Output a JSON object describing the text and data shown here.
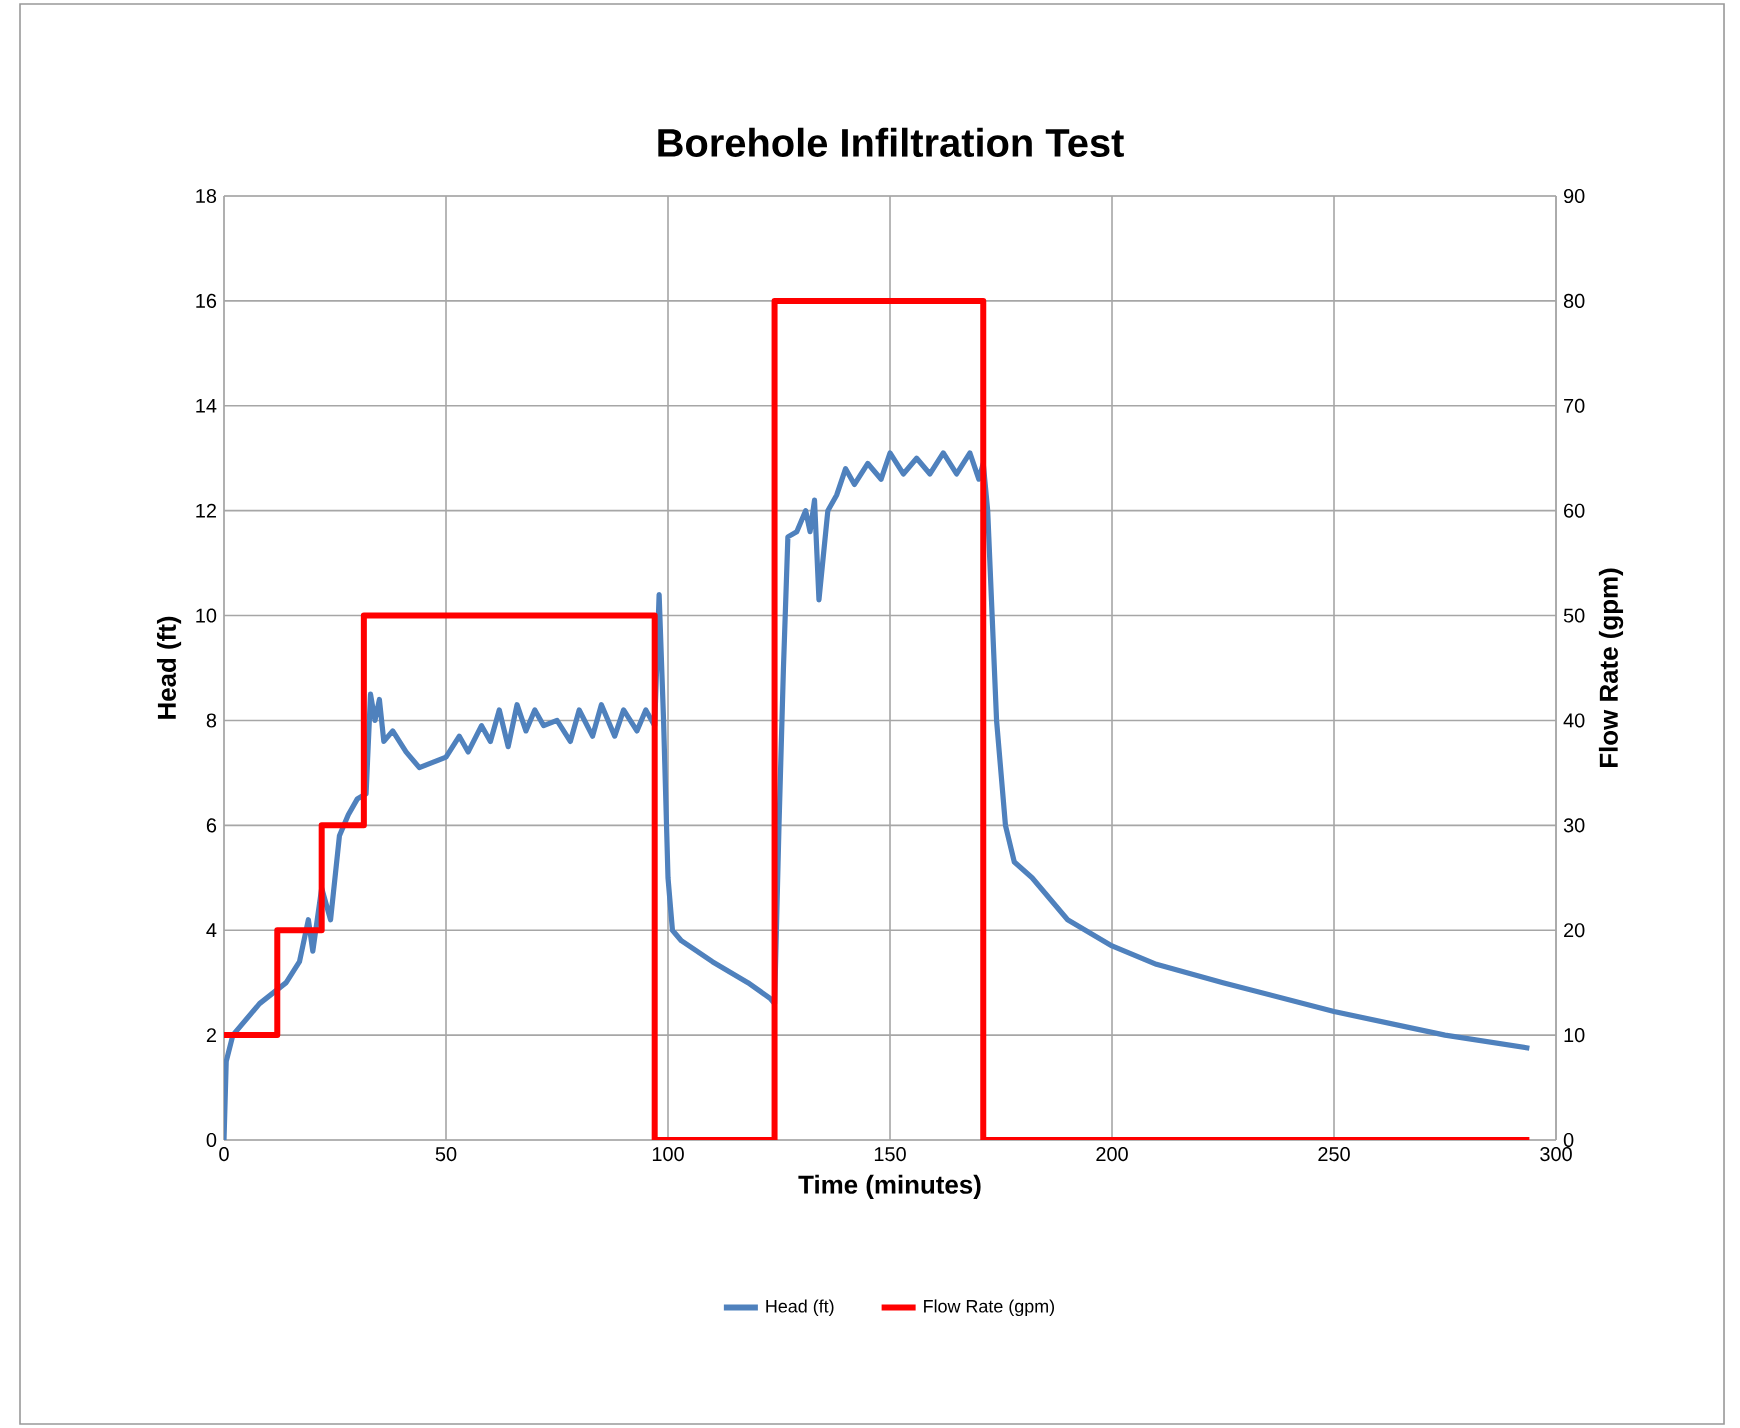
{
  "chart_data": {
    "type": "line",
    "title": "Borehole Infiltration Test",
    "xlabel": "Time (minutes)",
    "ylabel": "Head (ft)",
    "y2label": "Flow Rate (gpm)",
    "xlim": [
      0,
      300
    ],
    "xticks": [
      0,
      50,
      100,
      150,
      200,
      250,
      300
    ],
    "ylim": [
      0,
      18
    ],
    "yticks": [
      0,
      2,
      4,
      6,
      8,
      10,
      12,
      14,
      16,
      18
    ],
    "y2lim": [
      0,
      90
    ],
    "y2ticks": [
      0,
      10,
      20,
      30,
      40,
      50,
      60,
      70,
      80,
      90
    ],
    "grid": true,
    "legend": "bottom",
    "marker": "none",
    "series": [
      {
        "name": "Head (ft)",
        "color": "#4f81bd",
        "x": [
          0,
          0.5,
          2,
          5,
          8,
          11,
          14,
          17,
          19,
          20,
          22,
          24,
          26,
          28,
          30,
          32,
          33,
          34,
          35,
          36,
          38,
          41,
          44,
          47,
          50,
          53,
          55,
          58,
          60,
          62,
          64,
          66,
          68,
          70,
          72,
          75,
          78,
          80,
          83,
          85,
          88,
          90,
          93,
          95,
          97,
          98,
          99,
          100,
          101,
          103,
          110,
          118,
          123,
          124,
          125,
          126,
          127,
          129,
          131,
          132,
          133,
          134,
          136,
          138,
          140,
          142,
          145,
          148,
          150,
          153,
          156,
          159,
          162,
          165,
          168,
          170,
          171,
          172,
          174,
          176,
          178,
          182,
          186,
          190,
          200,
          210,
          225,
          250,
          275,
          294
        ],
        "values": [
          0,
          1.5,
          2,
          2.3,
          2.6,
          2.8,
          3.0,
          3.4,
          4.2,
          3.6,
          4.8,
          4.2,
          5.8,
          6.2,
          6.5,
          6.6,
          8.5,
          8.0,
          8.4,
          7.6,
          7.8,
          7.4,
          7.1,
          7.2,
          7.3,
          7.7,
          7.4,
          7.9,
          7.6,
          8.2,
          7.5,
          8.3,
          7.8,
          8.2,
          7.9,
          8.0,
          7.6,
          8.2,
          7.7,
          8.3,
          7.7,
          8.2,
          7.8,
          8.2,
          7.9,
          10.4,
          8,
          5,
          4.0,
          3.8,
          3.4,
          3.0,
          2.7,
          2.6,
          6,
          9,
          11.5,
          11.6,
          12.0,
          11.6,
          12.2,
          10.3,
          12.0,
          12.3,
          12.8,
          12.5,
          12.9,
          12.6,
          13.1,
          12.7,
          13.0,
          12.7,
          13.1,
          12.7,
          13.1,
          12.6,
          12.9,
          12,
          8,
          6,
          5.3,
          5.0,
          4.6,
          4.2,
          3.7,
          3.35,
          3.0,
          2.45,
          2.0,
          1.75
        ]
      },
      {
        "name": "Flow Rate (gpm)",
        "color": "#ff0000",
        "type": "step",
        "axis": "y2",
        "x": [
          0,
          12,
          22,
          31.5,
          97,
          124,
          171,
          294
        ],
        "values": [
          10,
          20,
          30,
          50,
          0,
          80,
          0,
          0
        ]
      }
    ]
  }
}
